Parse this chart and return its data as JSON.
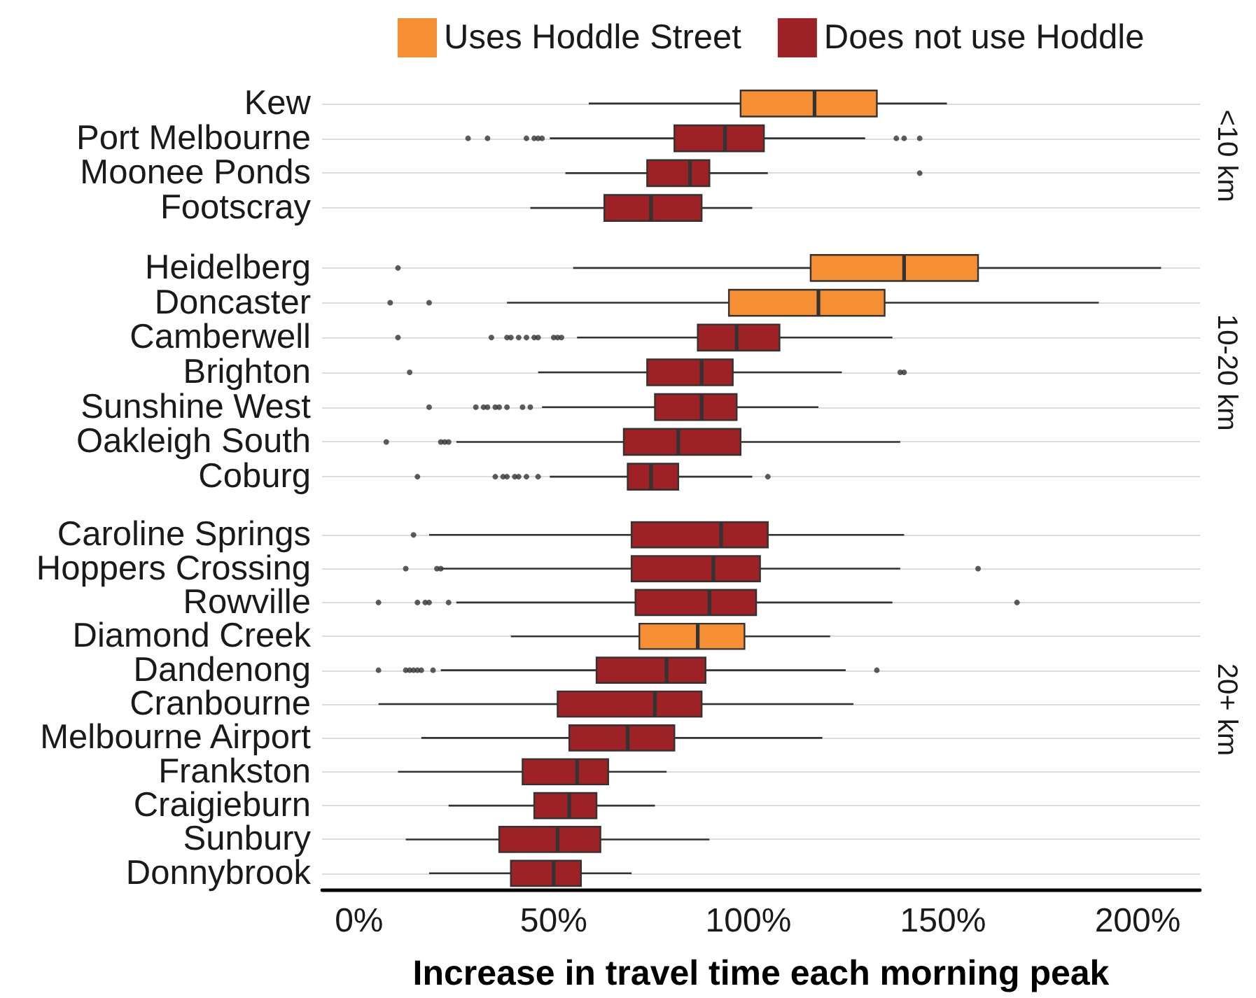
{
  "chart_data": [
    {
      "type": "box",
      "orientation": "horizontal",
      "title": "<10 km",
      "categories": [
        "Kew",
        "Port Melbourne",
        "Moonee Ponds",
        "Footscray"
      ],
      "series": [
        {
          "name": "Uses Hoddle Street",
          "color": "#f68e33",
          "boxes": [
            {
              "low": 59,
              "q1": 98,
              "median": 117,
              "q3": 133,
              "high": 151
            },
            null,
            null,
            null
          ]
        },
        {
          "name": "Does not use Hoddle",
          "color": "#9e2126",
          "boxes": [
            null,
            {
              "low": 49,
              "q1": 81,
              "median": 94,
              "q3": 104,
              "high": 130,
              "outliers": [
                28,
                33,
                43,
                45,
                46,
                47,
                138,
                140,
                144
              ]
            },
            {
              "low": 53,
              "q1": 74,
              "median": 85,
              "q3": 90,
              "high": 105,
              "outliers": [
                144
              ]
            },
            {
              "low": 44,
              "q1": 63,
              "median": 75,
              "q3": 88,
              "high": 101
            }
          ]
        }
      ],
      "xlim": [
        -9.5,
        216
      ],
      "tick_labels": "y",
      "grid": "y",
      "legend": "top"
    },
    {
      "type": "box",
      "orientation": "horizontal",
      "title": "10-20 km",
      "categories": [
        "Heidelberg",
        "Doncaster",
        "Camberwell",
        "Brighton",
        "Sunshine West",
        "Oakleigh South",
        "Coburg"
      ],
      "series": [
        {
          "color": "#f68e33",
          "boxes": [
            {
              "low": 55,
              "q1": 116,
              "median": 140,
              "q3": 159,
              "high": 206,
              "outliers": [
                10
              ]
            },
            {
              "low": 38,
              "q1": 95,
              "median": 118,
              "q3": 135,
              "high": 190,
              "outliers": [
                8,
                18
              ]
            },
            null,
            null,
            null,
            null,
            null
          ]
        },
        {
          "color": "#9e2126",
          "boxes": [
            null,
            null,
            {
              "low": 56,
              "q1": 87,
              "median": 97,
              "q3": 108,
              "high": 137,
              "outliers": [
                10,
                34,
                38,
                39,
                41,
                43,
                45,
                46,
                50,
                51,
                52
              ]
            },
            {
              "low": 46,
              "q1": 74,
              "median": 88,
              "q3": 96,
              "high": 124,
              "outliers": [
                13,
                139,
                140
              ]
            },
            {
              "low": 47,
              "q1": 76,
              "median": 88,
              "q3": 97,
              "high": 118,
              "outliers": [
                18,
                30,
                32,
                33,
                35,
                36,
                38,
                42,
                44
              ]
            },
            {
              "low": 25,
              "q1": 68,
              "median": 82,
              "q3": 98,
              "high": 139,
              "outliers": [
                7,
                21,
                22,
                23
              ]
            },
            {
              "low": 49,
              "q1": 69,
              "median": 75,
              "q3": 82,
              "high": 101,
              "outliers": [
                15,
                35,
                37,
                38,
                40,
                41,
                43,
                46,
                105
              ]
            }
          ]
        }
      ],
      "xlim": [
        -9.5,
        216
      ],
      "tick_labels": "y",
      "grid": "y"
    },
    {
      "type": "box",
      "orientation": "horizontal",
      "title": "20+ km",
      "categories": [
        "Caroline Springs",
        "Hoppers Crossing",
        "Rowville",
        "Diamond Creek",
        "Dandenong",
        "Cranbourne",
        "Melbourne Airport",
        "Frankston",
        "Craigieburn",
        "Sunbury",
        "Donnybrook"
      ],
      "series": [
        {
          "color": "#f68e33",
          "boxes": [
            null,
            null,
            null,
            {
              "low": 39,
              "q1": 72,
              "median": 87,
              "q3": 99,
              "high": 121
            },
            null,
            null,
            null,
            null,
            null,
            null,
            null
          ]
        },
        {
          "color": "#9e2126",
          "boxes": [
            {
              "low": 18,
              "q1": 70,
              "median": 93,
              "q3": 105,
              "high": 140,
              "outliers": [
                14
              ]
            },
            {
              "low": 21,
              "q1": 70,
              "median": 91,
              "q3": 103,
              "high": 139,
              "outliers": [
                12,
                20,
                21,
                159
              ]
            },
            {
              "low": 25,
              "q1": 71,
              "median": 90,
              "q3": 102,
              "high": 137,
              "outliers": [
                5,
                15,
                17,
                18,
                23,
                169
              ]
            },
            null,
            {
              "low": 21,
              "q1": 61,
              "median": 79,
              "q3": 89,
              "high": 125,
              "outliers": [
                5,
                12,
                13,
                14,
                15,
                16,
                19,
                133
              ]
            },
            {
              "low": 5,
              "q1": 51,
              "median": 76,
              "q3": 88,
              "high": 127
            },
            {
              "low": 16,
              "q1": 54,
              "median": 69,
              "q3": 81,
              "high": 119
            },
            {
              "low": 10,
              "q1": 42,
              "median": 56,
              "q3": 64,
              "high": 79
            },
            {
              "low": 23,
              "q1": 45,
              "median": 54,
              "q3": 61,
              "high": 76
            },
            {
              "low": 12,
              "q1": 36,
              "median": 51,
              "q3": 62,
              "high": 90
            },
            {
              "low": 18,
              "q1": 39,
              "median": 50,
              "q3": 57,
              "high": 70
            }
          ]
        }
      ],
      "xlim": [
        -9.5,
        216
      ],
      "xticks": [
        {
          "value": 0,
          "label": "0%"
        },
        {
          "value": 50,
          "label": "50%"
        },
        {
          "value": 100,
          "label": "100%"
        },
        {
          "value": 150,
          "label": "150%"
        },
        {
          "value": 200,
          "label": "200%"
        }
      ],
      "xlabel": "Increase in travel time each morning peak",
      "grid": "y"
    }
  ]
}
